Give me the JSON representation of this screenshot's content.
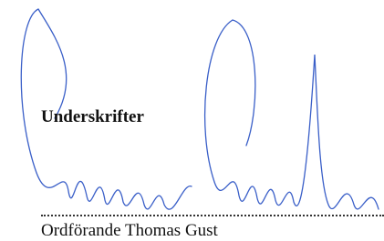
{
  "heading": "Underskrifter",
  "signatory": "Ordförande Thomas Gust"
}
